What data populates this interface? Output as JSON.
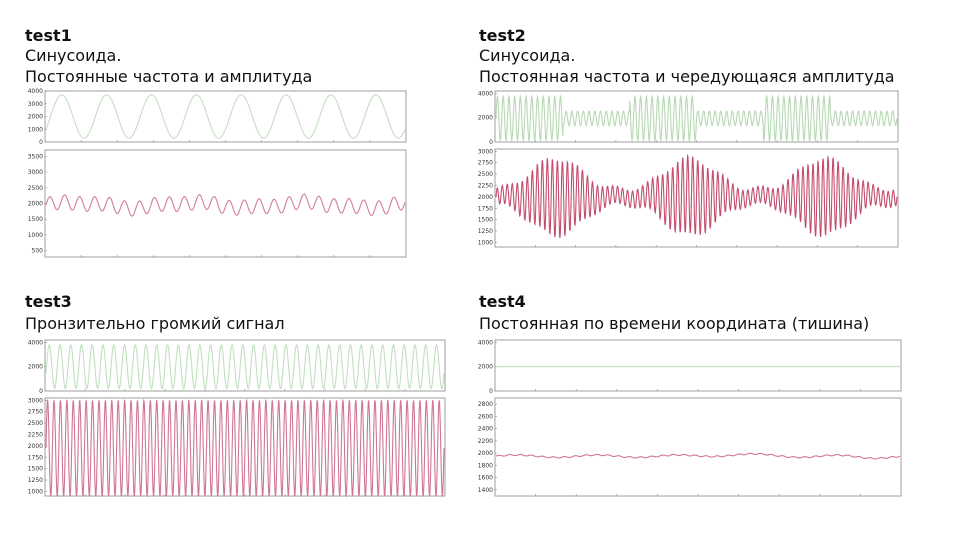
{
  "panels": [
    {
      "title": "test1",
      "captions": [
        "Синусоида.",
        "Постоянные частота и амплитуда"
      ],
      "charts": [
        {
          "type": "line",
          "color": "#c2e0bf",
          "ylim": [
            0,
            4000
          ],
          "yticks": [
            "4000",
            "3000",
            "2000",
            "1000",
            "0"
          ],
          "signal": {
            "kind": "sine",
            "cycles": 8,
            "center": 2000,
            "amp": 1700,
            "phase": 0.15
          }
        },
        {
          "type": "line",
          "color": "#d27e98",
          "ylim": [
            300,
            3700
          ],
          "yticks": [
            "3500",
            "3000",
            "2500",
            "2000",
            "1500",
            "1000",
            "500"
          ],
          "signal": {
            "kind": "wobble",
            "cycles": 24,
            "center": 1950,
            "amp": 230
          }
        }
      ]
    },
    {
      "title": "test2",
      "captions": [
        "Синусоида.",
        "Постоянная частота и чередующаяся амплитуда"
      ],
      "charts": [
        {
          "type": "line",
          "color": "#b7d9b3",
          "ylim": [
            0,
            4200
          ],
          "yticks": [
            "4000",
            "2000",
            "0"
          ],
          "signal": {
            "kind": "alt",
            "cycles": 70,
            "center": 1950,
            "hi": 1800,
            "lo": 600
          }
        },
        {
          "type": "line",
          "color": "#c44d6f",
          "ylim": [
            900,
            3050
          ],
          "yticks": [
            "3000",
            "2750",
            "2500",
            "2250",
            "2000",
            "1750",
            "1500",
            "1250",
            "1000"
          ],
          "signal": {
            "kind": "burst",
            "cycles": 80,
            "center": 2000,
            "hi": 850,
            "lo": 180
          }
        }
      ]
    },
    {
      "title": "test3",
      "captions": [
        "Пронзительно громкий сигнал"
      ],
      "charts": [
        {
          "type": "line",
          "color": "#c2e0bf",
          "ylim": [
            0,
            4200
          ],
          "yticks": [
            "4000",
            "2000",
            "0"
          ],
          "signal": {
            "kind": "sine",
            "cycles": 37,
            "center": 2000,
            "amp": 1800,
            "phase": 0.2
          }
        },
        {
          "type": "line",
          "color": "#cf7690",
          "ylim": [
            900,
            3050
          ],
          "yticks": [
            "3000",
            "2750",
            "2500",
            "2250",
            "2000",
            "1750",
            "1500",
            "1250",
            "1000"
          ],
          "signal": {
            "kind": "sine",
            "cycles": 62,
            "center": 1950,
            "amp": 1050,
            "phase": 0.25
          }
        }
      ]
    },
    {
      "title": "test4",
      "captions": [
        "Постоянная по времени координата (тишина)"
      ],
      "charts": [
        {
          "type": "line",
          "color": "#c2e0bf",
          "ylim": [
            0,
            4200
          ],
          "yticks": [
            "4000",
            "2000",
            "0"
          ],
          "signal": {
            "kind": "flat",
            "center": 2000
          }
        },
        {
          "type": "line",
          "color": "#cf7690",
          "ylim": [
            1300,
            2900
          ],
          "yticks": [
            "2800",
            "2600",
            "2400",
            "2200",
            "2000",
            "1800",
            "1600",
            "1400"
          ],
          "signal": {
            "kind": "noise",
            "center": 1950,
            "amp": 20
          }
        }
      ]
    }
  ]
}
